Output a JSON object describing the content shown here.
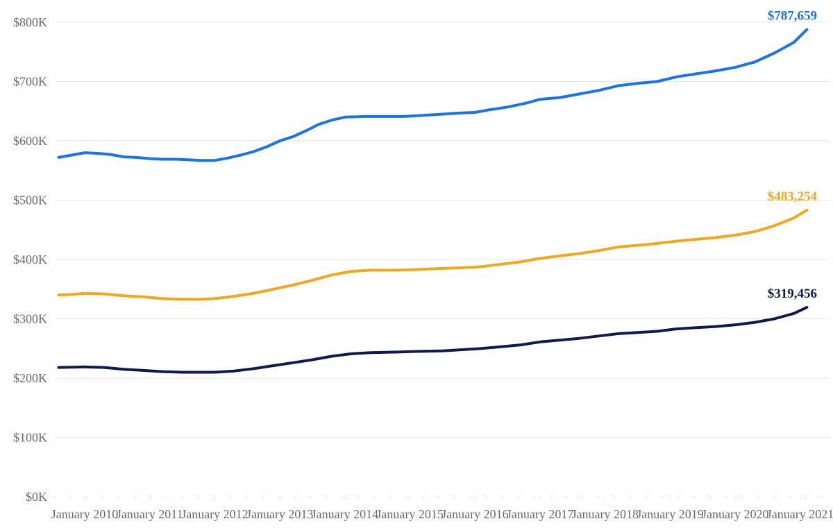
{
  "chart_data": {
    "type": "line",
    "title": "",
    "xlabel": "",
    "ylabel": "",
    "ylim": [
      0,
      800000
    ],
    "y_ticks": [
      {
        "value": 0,
        "label": "$0K"
      },
      {
        "value": 100000,
        "label": "$100K"
      },
      {
        "value": 200000,
        "label": "$200K"
      },
      {
        "value": 300000,
        "label": "$300K"
      },
      {
        "value": 400000,
        "label": "$400K"
      },
      {
        "value": 500000,
        "label": "$500K"
      },
      {
        "value": 600000,
        "label": "$600K"
      },
      {
        "value": 700000,
        "label": "$700K"
      },
      {
        "value": 800000,
        "label": "$800K"
      }
    ],
    "x_ticks": [
      "January 2010",
      "January 2011",
      "January 2012",
      "January 2013",
      "January 2014",
      "January 2015",
      "January 2016",
      "January 2017",
      "January 2018",
      "January 2019",
      "January 2020",
      "January 2021"
    ],
    "x_range": [
      2010.0,
      2021.0
    ],
    "grid": true,
    "legend": "none",
    "series": [
      {
        "color": "#1a73e8",
        "end_label": "$787,659",
        "points": [
          [
            2009.6,
            572000
          ],
          [
            2009.8,
            576000
          ],
          [
            2010.0,
            580000
          ],
          [
            2010.2,
            579000
          ],
          [
            2010.4,
            577000
          ],
          [
            2010.6,
            573000
          ],
          [
            2010.8,
            572000
          ],
          [
            2011.0,
            570000
          ],
          [
            2011.2,
            569000
          ],
          [
            2011.4,
            569000
          ],
          [
            2011.6,
            568000
          ],
          [
            2011.8,
            567000
          ],
          [
            2012.0,
            567000
          ],
          [
            2012.2,
            571000
          ],
          [
            2012.4,
            576000
          ],
          [
            2012.6,
            582000
          ],
          [
            2012.8,
            590000
          ],
          [
            2013.0,
            600000
          ],
          [
            2013.2,
            607000
          ],
          [
            2013.4,
            617000
          ],
          [
            2013.6,
            628000
          ],
          [
            2013.8,
            635000
          ],
          [
            2014.0,
            640000
          ],
          [
            2014.3,
            641000
          ],
          [
            2014.6,
            641000
          ],
          [
            2014.9,
            641000
          ],
          [
            2015.2,
            643000
          ],
          [
            2015.5,
            645000
          ],
          [
            2015.8,
            647000
          ],
          [
            2016.0,
            648000
          ],
          [
            2016.2,
            652000
          ],
          [
            2016.5,
            657000
          ],
          [
            2016.8,
            664000
          ],
          [
            2017.0,
            670000
          ],
          [
            2017.3,
            673000
          ],
          [
            2017.6,
            679000
          ],
          [
            2017.9,
            685000
          ],
          [
            2018.2,
            693000
          ],
          [
            2018.5,
            697000
          ],
          [
            2018.8,
            700000
          ],
          [
            2019.1,
            708000
          ],
          [
            2019.4,
            713000
          ],
          [
            2019.7,
            718000
          ],
          [
            2020.0,
            724000
          ],
          [
            2020.3,
            733000
          ],
          [
            2020.6,
            748000
          ],
          [
            2020.9,
            766000
          ],
          [
            2021.1,
            787659
          ]
        ]
      },
      {
        "color": "#f0a81e",
        "end_label": "$483,254",
        "points": [
          [
            2009.6,
            340000
          ],
          [
            2009.8,
            341000
          ],
          [
            2010.0,
            343000
          ],
          [
            2010.3,
            342000
          ],
          [
            2010.6,
            339000
          ],
          [
            2010.9,
            337000
          ],
          [
            2011.2,
            334000
          ],
          [
            2011.5,
            333000
          ],
          [
            2011.8,
            333000
          ],
          [
            2012.0,
            334000
          ],
          [
            2012.3,
            338000
          ],
          [
            2012.6,
            343000
          ],
          [
            2012.9,
            350000
          ],
          [
            2013.2,
            357000
          ],
          [
            2013.5,
            365000
          ],
          [
            2013.8,
            374000
          ],
          [
            2014.1,
            380000
          ],
          [
            2014.4,
            382000
          ],
          [
            2014.8,
            382000
          ],
          [
            2015.1,
            383000
          ],
          [
            2015.5,
            385000
          ],
          [
            2015.8,
            386000
          ],
          [
            2016.1,
            388000
          ],
          [
            2016.4,
            392000
          ],
          [
            2016.7,
            396000
          ],
          [
            2017.0,
            402000
          ],
          [
            2017.3,
            406000
          ],
          [
            2017.6,
            410000
          ],
          [
            2017.9,
            415000
          ],
          [
            2018.2,
            421000
          ],
          [
            2018.5,
            424000
          ],
          [
            2018.8,
            427000
          ],
          [
            2019.1,
            431000
          ],
          [
            2019.4,
            434000
          ],
          [
            2019.7,
            437000
          ],
          [
            2020.0,
            441000
          ],
          [
            2020.3,
            447000
          ],
          [
            2020.6,
            457000
          ],
          [
            2020.9,
            470000
          ],
          [
            2021.1,
            483254
          ]
        ]
      },
      {
        "color": "#0f1a4f",
        "end_label": "$319,456",
        "points": [
          [
            2009.6,
            218000
          ],
          [
            2009.8,
            218500
          ],
          [
            2010.0,
            219000
          ],
          [
            2010.3,
            218000
          ],
          [
            2010.6,
            215000
          ],
          [
            2010.9,
            213000
          ],
          [
            2011.2,
            211000
          ],
          [
            2011.5,
            210000
          ],
          [
            2011.8,
            210000
          ],
          [
            2012.0,
            210000
          ],
          [
            2012.3,
            212000
          ],
          [
            2012.6,
            216000
          ],
          [
            2012.9,
            221000
          ],
          [
            2013.2,
            226000
          ],
          [
            2013.5,
            231000
          ],
          [
            2013.8,
            237000
          ],
          [
            2014.1,
            241000
          ],
          [
            2014.4,
            243000
          ],
          [
            2014.8,
            244000
          ],
          [
            2015.1,
            245000
          ],
          [
            2015.5,
            246000
          ],
          [
            2015.8,
            248000
          ],
          [
            2016.1,
            250000
          ],
          [
            2016.4,
            253000
          ],
          [
            2016.7,
            256000
          ],
          [
            2017.0,
            261000
          ],
          [
            2017.3,
            264000
          ],
          [
            2017.6,
            267000
          ],
          [
            2017.9,
            271000
          ],
          [
            2018.2,
            275000
          ],
          [
            2018.5,
            277000
          ],
          [
            2018.8,
            279000
          ],
          [
            2019.1,
            283000
          ],
          [
            2019.4,
            285000
          ],
          [
            2019.7,
            287000
          ],
          [
            2020.0,
            290000
          ],
          [
            2020.3,
            294000
          ],
          [
            2020.6,
            300000
          ],
          [
            2020.9,
            309000
          ],
          [
            2021.1,
            319456
          ]
        ]
      }
    ]
  }
}
